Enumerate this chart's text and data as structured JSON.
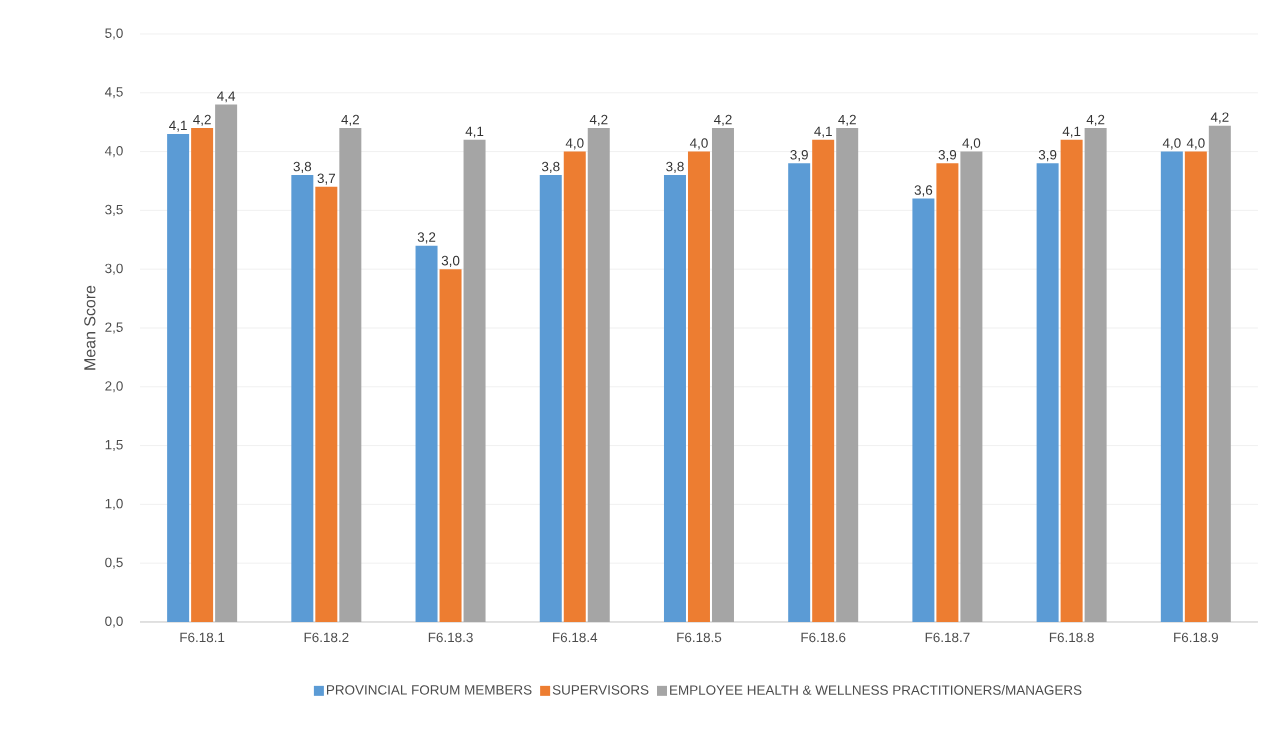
{
  "chart_data": {
    "type": "bar",
    "ylabel": "Mean Score",
    "categories": [
      "F6.18.1",
      "F6.18.2",
      "F6.18.3",
      "F6.18.4",
      "F6.18.5",
      "F6.18.6",
      "F6.18.7",
      "F6.18.8",
      "F6.18.9"
    ],
    "series": [
      {
        "name": "PROVINCIAL FORUM MEMBERS",
        "color": "#5b9bd5",
        "values": [
          4.15,
          3.8,
          3.2,
          3.8,
          3.8,
          3.9,
          3.6,
          3.9,
          4.0
        ],
        "value_labels": [
          "4,1",
          "3,8",
          "3,2",
          "3,8",
          "3,8",
          "3,9",
          "3,6",
          "3,9",
          "4,0"
        ]
      },
      {
        "name": "SUPERVISORS",
        "color": "#ed7d31",
        "values": [
          4.2,
          3.7,
          3.0,
          4.0,
          4.0,
          4.1,
          3.9,
          4.1,
          4.0
        ],
        "value_labels": [
          "4,2",
          "3,7",
          "3,0",
          "4,0",
          "4,0",
          "4,1",
          "3,9",
          "4,1",
          "4,0"
        ]
      },
      {
        "name": "EMPLOYEE HEALTH & WELLNESS PRACTITIONERS/MANAGERS",
        "color": "#a5a5a5",
        "values": [
          4.4,
          4.2,
          4.1,
          4.2,
          4.2,
          4.2,
          4.0,
          4.2,
          4.22
        ],
        "value_labels": [
          "4,4",
          "4,2",
          "4,1",
          "4,2",
          "4,2",
          "4,2",
          "4,0",
          "4,2",
          "4,2"
        ]
      }
    ],
    "ylim": [
      0,
      5
    ],
    "yticks": [
      {
        "value": 0,
        "label": "0,0"
      },
      {
        "value": 0.5,
        "label": "0,5"
      },
      {
        "value": 1,
        "label": "1,0"
      },
      {
        "value": 1.5,
        "label": "1,5"
      },
      {
        "value": 2,
        "label": "2,0"
      },
      {
        "value": 2.5,
        "label": "2,5"
      },
      {
        "value": 3,
        "label": "3,0"
      },
      {
        "value": 3.5,
        "label": "3,5"
      },
      {
        "value": 4,
        "label": "4,0"
      },
      {
        "value": 4.5,
        "label": "4,5"
      },
      {
        "value": 5,
        "label": "5,0"
      }
    ],
    "grid": "y",
    "legend": "bottom"
  }
}
